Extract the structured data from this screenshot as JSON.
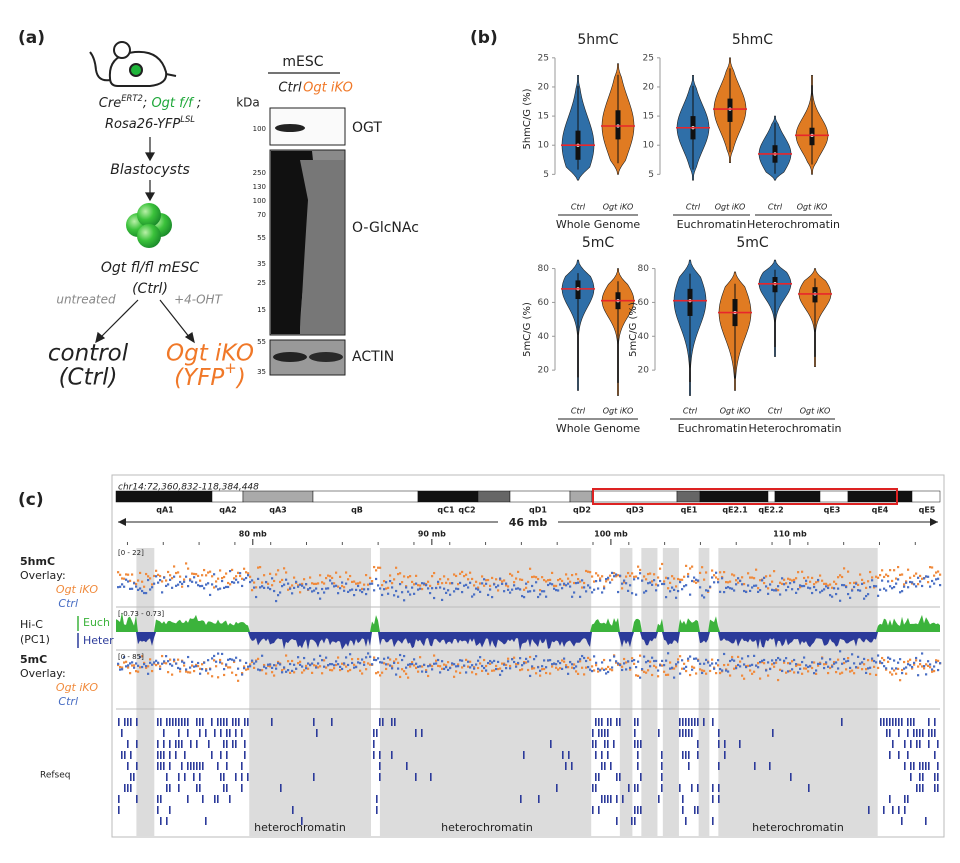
{
  "panel_labels": [
    "(a)",
    "(b)",
    "(c)"
  ],
  "panel_a": {
    "genotype": [
      "Cre",
      "ERT2",
      "; ",
      "Ogt f/f",
      " ;",
      "Rosa26-YFP",
      "LSL"
    ],
    "blastocysts": "Blastocysts",
    "cell_line": "Ogt fl/fl mESC",
    "cell_line_label": "(Ctrl)",
    "treatments": [
      "untreated",
      "+4-OHT"
    ],
    "outcomes": [
      {
        "name": "control",
        "label": "(Ctrl)"
      },
      {
        "name": "Ogt iKO",
        "label": [
          "(YFP",
          "+",
          ")"
        ]
      }
    ],
    "blot": {
      "header": "mESC",
      "lanes": [
        "Ctrl",
        "Ogt iKO"
      ],
      "unit": "kDa",
      "panels": [
        {
          "label": "OGT",
          "markers": [
            100
          ]
        },
        {
          "label": "O-GlcNAc",
          "markers": [
            250,
            130,
            100,
            70,
            55,
            35,
            25,
            15
          ]
        },
        {
          "label": "ACTIN",
          "markers": [
            55,
            35
          ]
        }
      ]
    }
  },
  "chart_data": [
    {
      "type": "violin",
      "title": "5hmC",
      "ylabel": "5hmC/G (%)",
      "ylim": [
        3,
        26
      ],
      "yticks": [
        5,
        10,
        15,
        20,
        25
      ],
      "categories": [
        "Ctrl",
        "Ogt iKO"
      ],
      "colors": [
        "#2f6fa8",
        "#e07b22"
      ],
      "median_color": "#e8262b",
      "values": [
        10,
        13.3
      ],
      "q1": [
        7.5,
        11
      ],
      "q3": [
        12.5,
        16
      ],
      "min": [
        4,
        5
      ],
      "max": [
        22,
        24
      ],
      "groups": [
        "Whole Genome"
      ]
    },
    {
      "type": "violin",
      "title": "5hmC",
      "ylim": [
        3,
        26
      ],
      "yticks": [
        5,
        10,
        15,
        20,
        25
      ],
      "categories": [
        "Ctrl",
        "Ogt iKO",
        "Ctrl",
        "Ogt iKO"
      ],
      "colors": [
        "#2f6fa8",
        "#e07b22",
        "#2f6fa8",
        "#e07b22"
      ],
      "median_color": "#e8262b",
      "values": [
        13,
        16.2,
        8.5,
        11.7
      ],
      "q1": [
        11,
        14,
        7,
        10
      ],
      "q3": [
        15,
        18,
        10,
        13
      ],
      "min": [
        4,
        7,
        4,
        5
      ],
      "max": [
        22,
        25,
        15,
        22
      ],
      "groups": [
        "Euchromatin",
        "Heterochromatin"
      ]
    },
    {
      "type": "violin",
      "title": "5mC",
      "ylabel": "5mC/G (%)",
      "ylim": [
        0,
        88
      ],
      "yticks": [
        20,
        40,
        60,
        80
      ],
      "categories": [
        "Ctrl",
        "Ogt iKO"
      ],
      "colors": [
        "#2f6fa8",
        "#e07b22"
      ],
      "median_color": "#e8262b",
      "values": [
        68,
        61
      ],
      "q1": [
        62,
        56
      ],
      "q3": [
        73,
        66
      ],
      "min": [
        8,
        5
      ],
      "max": [
        85,
        80
      ],
      "groups": [
        "Whole Genome"
      ]
    },
    {
      "type": "violin",
      "title": "5mC",
      "ylabel": "5mC/G (%)",
      "ylim": [
        0,
        88
      ],
      "yticks": [
        20,
        40,
        60,
        80
      ],
      "categories": [
        "Ctrl",
        "Ogt iKO",
        "Ctrl",
        "Ogt iKO"
      ],
      "colors": [
        "#2f6fa8",
        "#e07b22",
        "#2f6fa8",
        "#e07b22"
      ],
      "median_color": "#e8262b",
      "values": [
        61,
        54,
        71,
        65
      ],
      "q1": [
        52,
        46,
        66,
        60
      ],
      "q3": [
        68,
        62,
        75,
        69
      ],
      "min": [
        5,
        8,
        28,
        22
      ],
      "max": [
        85,
        78,
        85,
        80
      ],
      "groups": [
        "Euchromatin",
        "Heterochromatin"
      ]
    }
  ],
  "panel_c": {
    "locus": "chr14:72,360,832-118,384,448",
    "xlim": [
      72.36,
      118.38
    ],
    "span_label": "46 mb",
    "xticks": [
      {
        "value": 80,
        "label": "80 mb"
      },
      {
        "value": 90,
        "label": "90 mb"
      },
      {
        "value": 100,
        "label": "100 mb"
      },
      {
        "value": 110,
        "label": "110 mb"
      }
    ],
    "bands": [
      "qA1",
      "qA2",
      "qA3",
      "qB",
      "qC1",
      "qC2",
      "qD1",
      "qD2",
      "qD3",
      "qE1",
      "qE2.1",
      "qE2.2",
      "qE3",
      "qE4",
      "qE5"
    ],
    "tracks": {
      "hmc": {
        "name": "5hmC",
        "overlay": "Overlay:",
        "range": "[0 - 22]",
        "series": [
          {
            "name": "Ogt iKO",
            "color": "#f08a3c"
          },
          {
            "name": "Ctrl",
            "color": "#4a6fc4"
          }
        ]
      },
      "hic": {
        "name": "Hi-C",
        "sub": "(PC1)",
        "range": "[-0.73 - 0.73]",
        "states": [
          {
            "name": "Euch",
            "color": "#3cb33c"
          },
          {
            "name": "Heter",
            "color": "#2b3a9a"
          }
        ]
      },
      "mc": {
        "name": "5mC",
        "overlay": "Overlay:",
        "range": "[0 - 85]",
        "series": [
          {
            "name": "Ogt iKO",
            "color": "#f08a3c"
          },
          {
            "name": "Ctrl",
            "color": "#4a6fc4"
          }
        ]
      },
      "refseq": {
        "name": "Refseq"
      }
    },
    "heterochromatin_regions": [
      [
        73.5,
        74.5
      ],
      [
        79.8,
        86.6
      ],
      [
        87.1,
        98.9
      ],
      [
        100.5,
        101.2
      ],
      [
        101.7,
        102.6
      ],
      [
        102.9,
        103.8
      ],
      [
        104.9,
        105.5
      ],
      [
        106.0,
        114.9
      ]
    ],
    "region_labels": [
      "heterochromatin",
      "heterochromatin",
      "heterochromatin"
    ]
  }
}
